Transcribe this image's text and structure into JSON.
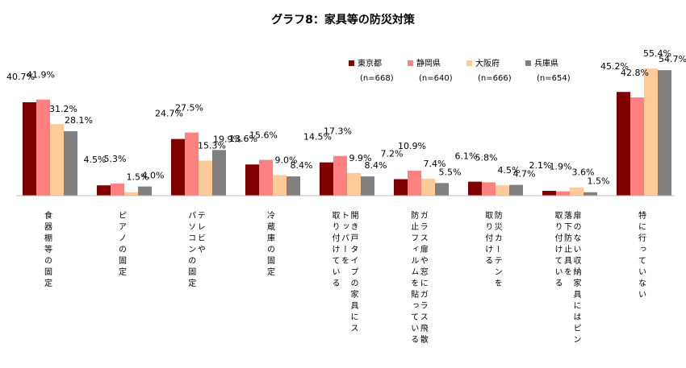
{
  "chart_data": {
    "type": "bar",
    "title": "グラフ8：家具等の防災対策",
    "ylim": [
      0,
      60
    ],
    "legend_position": "top-right",
    "grid": false,
    "categories": [
      {
        "lines": [
          "食器棚等の固定"
        ]
      },
      {
        "lines": [
          "ピアノの固定"
        ]
      },
      {
        "lines": [
          "パソコンの固定",
          "テレビや"
        ]
      },
      {
        "lines": [
          "冷蔵庫の固定"
        ]
      },
      {
        "lines": [
          "取り付けている",
          "トッパーを",
          "開き戸タイプの家具にス"
        ]
      },
      {
        "lines": [
          "防止フィルムを貼っている",
          "ガラス扉や窓にガラス飛散"
        ]
      },
      {
        "lines": [
          "取り付ける",
          "防災カーテンを"
        ]
      },
      {
        "lines": [
          "取り付けている",
          "落下防止具を",
          "扉のない収納家具にはピン"
        ]
      },
      {
        "lines": [
          "特に行っていない"
        ]
      }
    ],
    "series": [
      {
        "name": "東京都",
        "n": "(n=668)",
        "color": "#800000",
        "values": [
          40.7,
          4.5,
          24.7,
          13.6,
          14.5,
          7.2,
          6.1,
          2.1,
          45.2
        ],
        "labels": [
          "40.7%",
          "4.5%",
          "24.7%",
          "13.6%",
          "14.5%",
          "7.2%",
          "6.1%",
          "2.1%",
          "45.2%"
        ]
      },
      {
        "name": "静岡県",
        "n": "(n=640)",
        "color": "#ff8080",
        "values": [
          41.9,
          5.3,
          27.5,
          15.6,
          17.3,
          10.9,
          5.8,
          1.9,
          42.8
        ],
        "labels": [
          "41.9%",
          "5.3%",
          "27.5%",
          "15.6%",
          "17.3%",
          "10.9%",
          "5.8%",
          "1.9%",
          "42.8%"
        ]
      },
      {
        "name": "大阪府",
        "n": "(n=666)",
        "color": "#ffcc99",
        "values": [
          31.2,
          1.5,
          15.3,
          9.0,
          9.9,
          7.4,
          4.5,
          3.6,
          55.4
        ],
        "labels": [
          "31.2%",
          "1.5%",
          "15.3%",
          "9.0%",
          "9.9%",
          "7.4%",
          "4.5%",
          "3.6%",
          "55.4%"
        ]
      },
      {
        "name": "兵庫県",
        "n": "(n=654)",
        "color": "#808080",
        "values": [
          28.1,
          4.0,
          19.9,
          8.4,
          8.4,
          5.5,
          4.7,
          1.5,
          54.7
        ],
        "labels": [
          "28.1%",
          "4.0%",
          "19.9%",
          "8.4%",
          "8.4%",
          "5.5%",
          "4.7%",
          "1.5%",
          "54.7%"
        ]
      }
    ]
  }
}
